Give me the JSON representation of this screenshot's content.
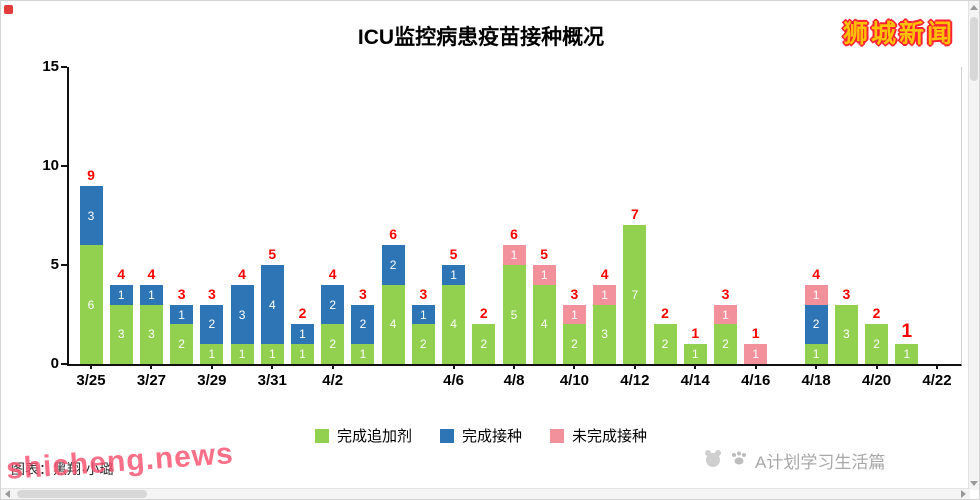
{
  "window": {
    "brand": "狮城新闻",
    "watermark": "shicheng.news",
    "credit": "图表：黑翔·小璐",
    "footer_right": "A计划学习生活篇"
  },
  "chart_data": {
    "type": "bar",
    "subtype": "stacked-bar",
    "title": "ICU监控病患疫苗接种概况",
    "xlabel": "",
    "ylabel": "",
    "ylim": [
      0,
      15
    ],
    "yticks": [
      0,
      5,
      10,
      15
    ],
    "grid": false,
    "legend_position": "bottom-center",
    "total_labels_color": "#ff0000",
    "colors": {
      "booster": "#92d050",
      "full": "#2e75b6",
      "partial": "#f2919c"
    },
    "legend": [
      {
        "key": "booster",
        "label": "完成追加剂"
      },
      {
        "key": "full",
        "label": "完成接种"
      },
      {
        "key": "partial",
        "label": "未完成接种"
      }
    ],
    "bars": [
      {
        "date": "3/25",
        "tick": "3/25",
        "booster": 6,
        "full": 3,
        "partial": 0,
        "total": 9
      },
      {
        "date": "3/26",
        "tick": null,
        "booster": 3,
        "full": 1,
        "partial": 0,
        "total": 4
      },
      {
        "date": "3/27",
        "tick": "3/27",
        "booster": 3,
        "full": 1,
        "partial": 0,
        "total": 4
      },
      {
        "date": "3/28",
        "tick": null,
        "booster": 2,
        "full": 1,
        "partial": 0,
        "total": 3
      },
      {
        "date": "3/29",
        "tick": "3/29",
        "booster": 1,
        "full": 2,
        "partial": 0,
        "total": 3
      },
      {
        "date": "3/30",
        "tick": null,
        "booster": 1,
        "full": 3,
        "partial": 0,
        "total": 4
      },
      {
        "date": "3/31",
        "tick": "3/31",
        "booster": 1,
        "full": 4,
        "partial": 0,
        "total": 5
      },
      {
        "date": "4/1",
        "tick": null,
        "booster": 1,
        "full": 1,
        "partial": 0,
        "total": 2
      },
      {
        "date": "4/2",
        "tick": "4/2",
        "booster": 2,
        "full": 2,
        "partial": 0,
        "total": 4
      },
      {
        "date": "4/3",
        "tick": null,
        "booster": 1,
        "full": 2,
        "partial": 0,
        "total": 3
      },
      {
        "date": "4/4",
        "tick": null,
        "booster": 4,
        "full": 2,
        "partial": 0,
        "total": 6
      },
      {
        "date": "4/5",
        "tick": null,
        "booster": 2,
        "full": 1,
        "partial": 0,
        "total": 3
      },
      {
        "date": "4/6",
        "tick": "4/6",
        "booster": 4,
        "full": 1,
        "partial": 0,
        "total": 5
      },
      {
        "date": "4/7",
        "tick": null,
        "booster": 2,
        "full": 0,
        "partial": 0,
        "total": 2
      },
      {
        "date": "4/8",
        "tick": "4/8",
        "booster": 5,
        "full": 0,
        "partial": 1,
        "total": 6
      },
      {
        "date": "4/9",
        "tick": null,
        "booster": 4,
        "full": 0,
        "partial": 1,
        "total": 5
      },
      {
        "date": "4/10",
        "tick": "4/10",
        "booster": 2,
        "full": 0,
        "partial": 1,
        "total": 3
      },
      {
        "date": "4/11",
        "tick": null,
        "booster": 3,
        "full": 0,
        "partial": 1,
        "total": 4
      },
      {
        "date": "4/12",
        "tick": "4/12",
        "booster": 7,
        "full": 0,
        "partial": 0,
        "total": 7
      },
      {
        "date": "4/13",
        "tick": null,
        "booster": 2,
        "full": 0,
        "partial": 0,
        "total": 2
      },
      {
        "date": "4/14",
        "tick": "4/14",
        "booster": 1,
        "full": 0,
        "partial": 0,
        "total": 1
      },
      {
        "date": "4/15",
        "tick": null,
        "booster": 2,
        "full": 0,
        "partial": 1,
        "total": 3
      },
      {
        "date": "4/16",
        "tick": "4/16",
        "booster": 0,
        "full": 0,
        "partial": 1,
        "total": 1
      },
      {
        "date": "4/17",
        "tick": null,
        "booster": 0,
        "full": 0,
        "partial": 0,
        "total": 0
      },
      {
        "date": "4/18",
        "tick": "4/18",
        "booster": 1,
        "full": 2,
        "partial": 1,
        "total": 4
      },
      {
        "date": "4/19",
        "tick": null,
        "booster": 3,
        "full": 0,
        "partial": 0,
        "total": 3
      },
      {
        "date": "4/20",
        "tick": "4/20",
        "booster": 2,
        "full": 0,
        "partial": 0,
        "total": 2
      },
      {
        "date": "4/21",
        "tick": null,
        "booster": 1,
        "full": 0,
        "partial": 0,
        "total": 1,
        "bold": true
      },
      {
        "date": "4/22",
        "tick": "4/22",
        "booster": 0,
        "full": 0,
        "partial": 0,
        "total": 0
      }
    ]
  }
}
